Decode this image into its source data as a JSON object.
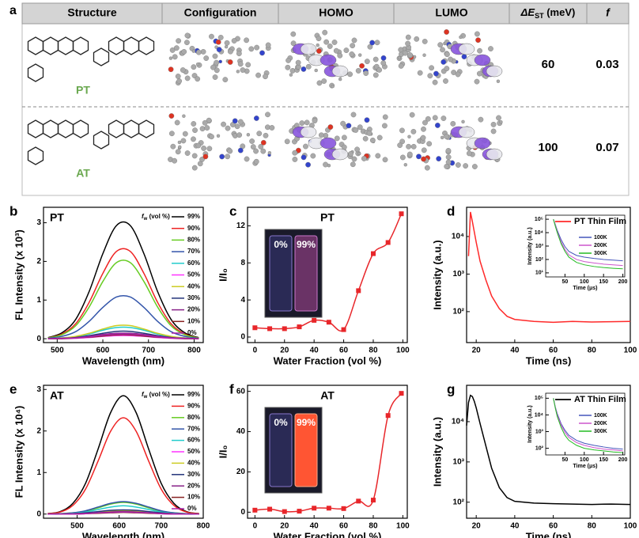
{
  "table": {
    "label": "a",
    "headers": [
      "Structure",
      "Configuration",
      "HOMO",
      "LUMO",
      {
        "main": "ΔE",
        "sub": "ST",
        "rest": " (meV)"
      },
      "f"
    ],
    "rows": [
      {
        "name": "PT",
        "delta_est": 60,
        "f": 0.03
      },
      {
        "name": "AT",
        "delta_est": 100,
        "f": 0.07
      }
    ]
  },
  "chart_data": [
    {
      "type": "line",
      "panel": "b",
      "annotation": "PT",
      "xlabel": "Wavelength (nm)",
      "ylabel": "FL Intensity (x 10³)",
      "x": [
        480,
        510,
        540,
        570,
        600,
        630,
        660,
        690,
        720,
        750,
        780,
        810
      ],
      "xlim": [
        470,
        820
      ],
      "xticks": [
        500,
        600,
        700,
        800
      ],
      "ylim": [
        -0.1,
        3.4
      ],
      "yticks": [
        0,
        1,
        2,
        3
      ],
      "legend_title": {
        "main": "f",
        "sub": "w",
        "rest": " (vol %)"
      },
      "legend": "upper right",
      "series": [
        {
          "name": "99%",
          "color": "#000000",
          "values": [
            0.03,
            0.15,
            0.49,
            1.22,
            2.2,
            2.93,
            2.93,
            2.2,
            1.22,
            0.49,
            0.15,
            0.03
          ]
        },
        {
          "name": "90%",
          "color": "#ee2222",
          "values": [
            0.02,
            0.12,
            0.38,
            0.94,
            1.69,
            2.26,
            2.26,
            1.69,
            0.94,
            0.38,
            0.12,
            0.02
          ]
        },
        {
          "name": "80%",
          "color": "#66cc22",
          "values": [
            0.02,
            0.1,
            0.33,
            0.82,
            1.48,
            1.97,
            1.97,
            1.48,
            0.82,
            0.33,
            0.1,
            0.02
          ]
        },
        {
          "name": "70%",
          "color": "#3355aa",
          "values": [
            0.01,
            0.06,
            0.18,
            0.45,
            0.81,
            1.08,
            1.08,
            0.81,
            0.45,
            0.18,
            0.06,
            0.01
          ]
        },
        {
          "name": "60%",
          "color": "#22cccc",
          "values": [
            0,
            0.02,
            0.05,
            0.12,
            0.22,
            0.29,
            0.29,
            0.22,
            0.12,
            0.05,
            0.02,
            0
          ]
        },
        {
          "name": "50%",
          "color": "#ff33ff",
          "values": [
            0,
            0,
            0.01,
            0.03,
            0.06,
            0.08,
            0.08,
            0.06,
            0.03,
            0.01,
            0,
            0
          ]
        },
        {
          "name": "40%",
          "color": "#cccc22",
          "values": [
            0,
            0.02,
            0.06,
            0.14,
            0.25,
            0.34,
            0.34,
            0.25,
            0.14,
            0.06,
            0.02,
            0
          ]
        },
        {
          "name": "30%",
          "color": "#22337a",
          "values": [
            0,
            0.01,
            0.03,
            0.08,
            0.14,
            0.19,
            0.19,
            0.14,
            0.08,
            0.03,
            0.01,
            0
          ]
        },
        {
          "name": "20%",
          "color": "#882288",
          "values": [
            0,
            0.01,
            0.02,
            0.06,
            0.11,
            0.14,
            0.14,
            0.11,
            0.06,
            0.02,
            0.01,
            0
          ]
        },
        {
          "name": "10%",
          "color": "#882222",
          "values": [
            0,
            0,
            0.02,
            0.04,
            0.07,
            0.1,
            0.1,
            0.07,
            0.04,
            0.02,
            0,
            0
          ]
        },
        {
          "name": "0%",
          "color": "#aa22aa",
          "values": [
            0,
            0.01,
            0.02,
            0.05,
            0.09,
            0.12,
            0.12,
            0.09,
            0.05,
            0.02,
            0.01,
            0
          ]
        }
      ]
    },
    {
      "type": "line",
      "markers": true,
      "panel": "c",
      "title": "PT",
      "xlabel": "Water Fraction (vol %)",
      "ylabel": "I/I₀",
      "x": [
        0,
        10,
        20,
        30,
        40,
        50,
        60,
        70,
        80,
        90,
        99
      ],
      "values": [
        1.0,
        0.9,
        0.9,
        1.1,
        1.8,
        1.6,
        0.8,
        5.0,
        9.0,
        10.2,
        13.3
      ],
      "color": "#e8262a",
      "xlim": [
        -5,
        103
      ],
      "xticks": [
        0,
        20,
        40,
        60,
        80,
        100
      ],
      "ylim": [
        -0.6,
        14
      ],
      "yticks": [
        0,
        4,
        8,
        12
      ],
      "photo_labels": [
        "0%",
        "99%"
      ]
    },
    {
      "type": "line",
      "log_y": true,
      "panel": "d",
      "xlabel": "Time (ns)",
      "ylabel": "Intensity (a.u.)",
      "x": [
        16,
        17,
        18,
        20,
        22,
        25,
        28,
        32,
        36,
        40,
        50,
        60,
        70,
        80,
        90,
        100
      ],
      "xlim": [
        15,
        100
      ],
      "xticks": [
        20,
        40,
        60,
        80,
        100
      ],
      "ylim": [
        15,
        60000
      ],
      "yticks": [
        {
          "value": 100,
          "label": "10²"
        },
        {
          "value": 1000,
          "label": "10³"
        },
        {
          "value": 10000,
          "label": "10⁴"
        }
      ],
      "series": [
        {
          "name": "PT Thin Film",
          "color": "#ff2a2a",
          "values": [
            3000,
            45000,
            25000,
            7000,
            2200,
            700,
            260,
            120,
            75,
            62,
            55,
            52,
            55,
            53,
            54,
            55
          ]
        }
      ],
      "inset": {
        "log_y": true,
        "xlabel": "Time (μs)",
        "ylabel": "Intensity (a.u.)",
        "x": [
          20,
          25,
          30,
          40,
          50,
          60,
          80,
          100,
          125,
          150,
          175,
          200
        ],
        "xlim": [
          0,
          205
        ],
        "xticks": [
          50,
          100,
          150,
          200
        ],
        "ylim": [
          5,
          200000
        ],
        "yticks": [
          {
            "value": 10,
            "label": "10¹"
          },
          {
            "value": 100,
            "label": "10²"
          },
          {
            "value": 1000,
            "label": "10³"
          },
          {
            "value": 10000,
            "label": "10⁴"
          },
          {
            "value": 100000,
            "label": "10⁵"
          }
        ],
        "series": [
          {
            "name": "100K",
            "color": "#4455bb",
            "values": [
              100000,
              40000,
              15000,
              3000,
              900,
              400,
              200,
              150,
              120,
              100,
              90,
              80
            ]
          },
          {
            "name": "200K",
            "color": "#cc55cc",
            "values": [
              100000,
              35000,
              12000,
              2000,
              550,
              220,
              100,
              70,
              55,
              45,
              40,
              35
            ]
          },
          {
            "name": "300K",
            "color": "#22bb22",
            "values": [
              100000,
              30000,
              10000,
              1500,
              400,
              150,
              60,
              40,
              30,
              25,
              22,
              20
            ]
          }
        ]
      }
    },
    {
      "type": "line",
      "panel": "e",
      "annotation": "AT",
      "xlabel": "Wavelength (nm)",
      "ylabel": "FL Intensity (x 10⁴)",
      "x": [
        430,
        460,
        490,
        520,
        550,
        580,
        610,
        640,
        670,
        700,
        730,
        760,
        790
      ],
      "xlim": [
        420,
        800
      ],
      "xticks": [
        500,
        600,
        700,
        800
      ],
      "ylim": [
        -0.1,
        3.1
      ],
      "yticks": [
        0,
        1,
        2,
        3
      ],
      "legend_title": {
        "main": "f",
        "sub": "w",
        "rest": " (vol %)"
      },
      "legend": "upper right",
      "series": [
        {
          "name": "99%",
          "color": "#000000",
          "values": [
            0.01,
            0.06,
            0.26,
            0.74,
            1.57,
            2.45,
            2.85,
            2.45,
            1.57,
            0.74,
            0.26,
            0.06,
            0.01
          ]
        },
        {
          "name": "90%",
          "color": "#ee2222",
          "values": [
            0.01,
            0.05,
            0.21,
            0.6,
            1.28,
            2.0,
            2.32,
            2.0,
            1.28,
            0.6,
            0.21,
            0.05,
            0.01
          ]
        },
        {
          "name": "80%",
          "color": "#66cc22",
          "values": [
            0,
            0.01,
            0.03,
            0.07,
            0.15,
            0.24,
            0.28,
            0.24,
            0.15,
            0.07,
            0.03,
            0.01,
            0
          ]
        },
        {
          "name": "70%",
          "color": "#3355aa",
          "values": [
            0,
            0.01,
            0.03,
            0.08,
            0.17,
            0.26,
            0.3,
            0.26,
            0.17,
            0.08,
            0.03,
            0.01,
            0
          ]
        },
        {
          "name": "60%",
          "color": "#22cccc",
          "values": [
            0,
            0,
            0.02,
            0.05,
            0.11,
            0.17,
            0.2,
            0.17,
            0.11,
            0.05,
            0.02,
            0,
            0
          ]
        },
        {
          "name": "50%",
          "color": "#ff33ff",
          "values": [
            0,
            0,
            0,
            0.01,
            0.03,
            0.04,
            0.05,
            0.04,
            0.03,
            0.01,
            0,
            0,
            0
          ]
        },
        {
          "name": "40%",
          "color": "#cccc22",
          "values": [
            0,
            0,
            0.01,
            0.02,
            0.04,
            0.07,
            0.08,
            0.07,
            0.04,
            0.02,
            0.01,
            0,
            0
          ]
        },
        {
          "name": "30%",
          "color": "#22337a",
          "values": [
            0,
            0,
            0.01,
            0.03,
            0.06,
            0.09,
            0.1,
            0.09,
            0.06,
            0.03,
            0.01,
            0,
            0
          ]
        },
        {
          "name": "20%",
          "color": "#882288",
          "values": [
            0,
            0,
            0.01,
            0.02,
            0.03,
            0.05,
            0.06,
            0.05,
            0.03,
            0.02,
            0.01,
            0,
            0
          ]
        },
        {
          "name": "10%",
          "color": "#882222",
          "values": [
            0,
            0,
            0,
            0.01,
            0.02,
            0.03,
            0.04,
            0.03,
            0.02,
            0.01,
            0,
            0,
            0
          ]
        },
        {
          "name": "0%",
          "color": "#aa22aa",
          "values": [
            0,
            0,
            0,
            0.01,
            0.03,
            0.04,
            0.05,
            0.04,
            0.03,
            0.01,
            0,
            0,
            0
          ]
        }
      ]
    },
    {
      "type": "line",
      "markers": true,
      "panel": "f",
      "title": "AT",
      "xlabel": "Water Fraction (vol %)",
      "ylabel": "I/I₀",
      "x": [
        0,
        10,
        20,
        30,
        40,
        50,
        60,
        70,
        80,
        90,
        99
      ],
      "values": [
        1,
        1.5,
        0.3,
        0.5,
        2,
        2,
        1.8,
        5.5,
        6,
        48,
        59
      ],
      "color": "#e8262a",
      "xlim": [
        -5,
        103
      ],
      "xticks": [
        0,
        20,
        40,
        60,
        80,
        100
      ],
      "ylim": [
        -3,
        63
      ],
      "yticks": [
        0,
        20,
        40,
        60
      ],
      "photo_labels": [
        "0%",
        "99%"
      ]
    },
    {
      "type": "line",
      "log_y": true,
      "panel": "g",
      "xlabel": "Time (ns)",
      "ylabel": "Intensity (a.u.)",
      "x": [
        15,
        16,
        17,
        18,
        19,
        20,
        22,
        25,
        28,
        32,
        36,
        40,
        50,
        60,
        70,
        80,
        90,
        100
      ],
      "xlim": [
        15,
        100
      ],
      "xticks": [
        20,
        40,
        60,
        80,
        100
      ],
      "ylim": [
        40,
        80000
      ],
      "yticks": [
        {
          "value": 100,
          "label": "10²"
        },
        {
          "value": 1000,
          "label": "10³"
        },
        {
          "value": 10000,
          "label": "10⁴"
        }
      ],
      "series": [
        {
          "name": "AT Thin Film",
          "color": "#000000",
          "values": [
            8000,
            30000,
            45000,
            42000,
            32000,
            22000,
            9000,
            2500,
            700,
            230,
            130,
            105,
            95,
            92,
            90,
            88,
            90,
            88
          ]
        }
      ],
      "inset": {
        "log_y": true,
        "xlabel": "Time (μs)",
        "ylabel": "Intensity (a.u.)",
        "x": [
          20,
          25,
          30,
          40,
          50,
          60,
          80,
          100,
          125,
          150,
          175,
          200
        ],
        "xlim": [
          0,
          205
        ],
        "xticks": [
          50,
          100,
          150,
          200
        ],
        "ylim": [
          40,
          200000
        ],
        "yticks": [
          {
            "value": 100,
            "label": "10²"
          },
          {
            "value": 1000,
            "label": "10³"
          },
          {
            "value": 10000,
            "label": "10⁴"
          },
          {
            "value": 100000,
            "label": "10⁵"
          }
        ],
        "series": [
          {
            "name": "100K",
            "color": "#4455bb",
            "values": [
              100000,
              30000,
              12000,
              3000,
              1200,
              600,
              300,
              200,
              150,
              120,
              100,
              90
            ]
          },
          {
            "name": "200K",
            "color": "#cc55cc",
            "values": [
              100000,
              28000,
              10000,
              2500,
              900,
              450,
              220,
              150,
              110,
              90,
              80,
              70
            ]
          },
          {
            "name": "300K",
            "color": "#22bb22",
            "values": [
              100000,
              25000,
              8000,
              1800,
              600,
              300,
              150,
              100,
              80,
              70,
              60,
              55
            ]
          }
        ]
      }
    }
  ]
}
